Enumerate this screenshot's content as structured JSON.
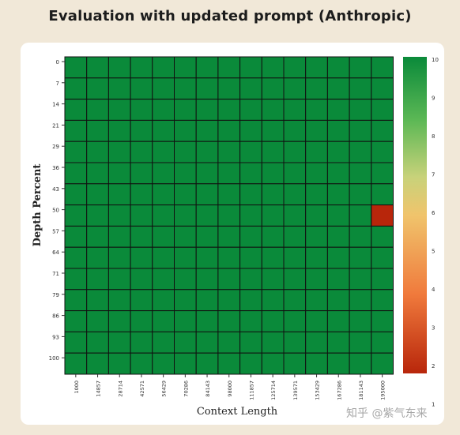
{
  "title": "Evaluation with updated prompt (Anthropic)",
  "watermark": "知乎 @紫气东来",
  "chart_data": {
    "type": "heatmap",
    "title": "Evaluation with updated prompt (Anthropic)",
    "xlabel": "Context Length",
    "ylabel": "Depth Percent",
    "x_ticks": [
      "1000",
      "14857",
      "28714",
      "42571",
      "56429",
      "70286",
      "84143",
      "98000",
      "111857",
      "125714",
      "139571",
      "153429",
      "167286",
      "181143",
      "195000"
    ],
    "y_ticks": [
      "0",
      "7",
      "14",
      "21",
      "29",
      "36",
      "43",
      "50",
      "57",
      "64",
      "71",
      "79",
      "86",
      "93",
      "100"
    ],
    "values": [
      [
        10,
        10,
        10,
        10,
        10,
        10,
        10,
        10,
        10,
        10,
        10,
        10,
        10,
        10,
        10
      ],
      [
        10,
        10,
        10,
        10,
        10,
        10,
        10,
        10,
        10,
        10,
        10,
        10,
        10,
        10,
        10
      ],
      [
        10,
        10,
        10,
        10,
        10,
        10,
        10,
        10,
        10,
        10,
        10,
        10,
        10,
        10,
        10
      ],
      [
        10,
        10,
        10,
        10,
        10,
        10,
        10,
        10,
        10,
        10,
        10,
        10,
        10,
        10,
        10
      ],
      [
        10,
        10,
        10,
        10,
        10,
        10,
        10,
        10,
        10,
        10,
        10,
        10,
        10,
        10,
        10
      ],
      [
        10,
        10,
        10,
        10,
        10,
        10,
        10,
        10,
        10,
        10,
        10,
        10,
        10,
        10,
        10
      ],
      [
        10,
        10,
        10,
        10,
        10,
        10,
        10,
        10,
        10,
        10,
        10,
        10,
        10,
        10,
        10
      ],
      [
        10,
        10,
        10,
        10,
        10,
        10,
        10,
        10,
        10,
        10,
        10,
        10,
        10,
        10,
        1
      ],
      [
        10,
        10,
        10,
        10,
        10,
        10,
        10,
        10,
        10,
        10,
        10,
        10,
        10,
        10,
        10
      ],
      [
        10,
        10,
        10,
        10,
        10,
        10,
        10,
        10,
        10,
        10,
        10,
        10,
        10,
        10,
        10
      ],
      [
        10,
        10,
        10,
        10,
        10,
        10,
        10,
        10,
        10,
        10,
        10,
        10,
        10,
        10,
        10
      ],
      [
        10,
        10,
        10,
        10,
        10,
        10,
        10,
        10,
        10,
        10,
        10,
        10,
        10,
        10,
        10
      ],
      [
        10,
        10,
        10,
        10,
        10,
        10,
        10,
        10,
        10,
        10,
        10,
        10,
        10,
        10,
        10
      ],
      [
        10,
        10,
        10,
        10,
        10,
        10,
        10,
        10,
        10,
        10,
        10,
        10,
        10,
        10,
        10
      ],
      [
        10,
        10,
        10,
        10,
        10,
        10,
        10,
        10,
        10,
        10,
        10,
        10,
        10,
        10,
        10
      ]
    ],
    "colorbar": {
      "min": 1,
      "max": 10,
      "ticks": [
        "10",
        "9",
        "8",
        "7",
        "6",
        "5",
        "4",
        "3",
        "2",
        "1"
      ],
      "colors": [
        "#b8260b",
        "#f07a3c",
        "#f0c46c",
        "#c8d27a",
        "#5cb855",
        "#0a8a3a"
      ]
    }
  }
}
